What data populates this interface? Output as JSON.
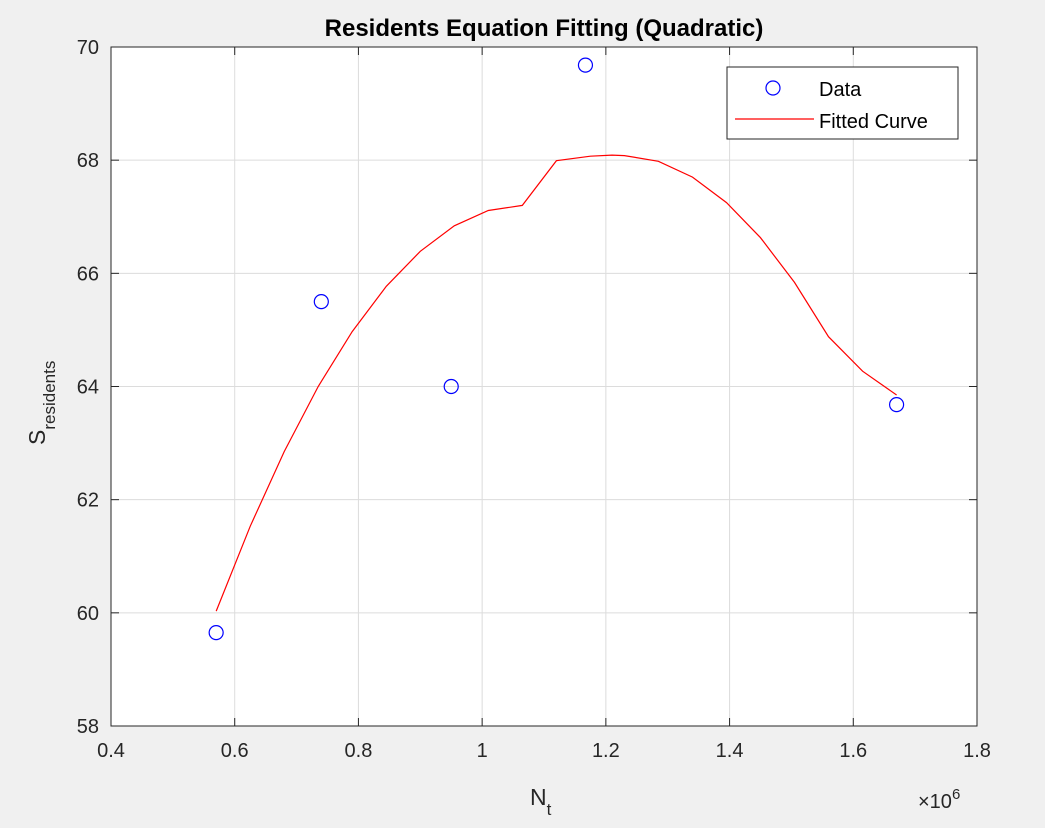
{
  "chart_data": {
    "type": "scatter",
    "title": "Residents Equation Fitting (Quadratic)",
    "xlabel": {
      "base": "N",
      "sub": "t"
    },
    "ylabel": {
      "base": "S",
      "sub": "residents"
    },
    "x_exponent_label": {
      "prefix": "×10",
      "exp": "6"
    },
    "xlim": [
      0.4,
      1.8
    ],
    "ylim": [
      58,
      70
    ],
    "x_ticks": [
      0.4,
      0.6,
      0.8,
      1.0,
      1.2,
      1.4,
      1.6,
      1.8
    ],
    "x_tick_labels": [
      "0.4",
      "0.6",
      "0.8",
      "1",
      "1.2",
      "1.4",
      "1.6",
      "1.8"
    ],
    "y_ticks": [
      58,
      60,
      62,
      64,
      66,
      68,
      70
    ],
    "y_tick_labels": [
      "58",
      "60",
      "62",
      "64",
      "66",
      "68",
      "70"
    ],
    "grid": true,
    "legend_position": "top-right",
    "series": [
      {
        "name": "Data",
        "kind": "markers",
        "marker": "circle",
        "color": "#0000ff",
        "x": [
          0.57,
          0.74,
          0.95,
          1.167,
          1.67
        ],
        "y": [
          59.65,
          65.5,
          64.0,
          69.68,
          63.68
        ]
      },
      {
        "name": "Fitted Curve",
        "kind": "line",
        "color": "#ff0000",
        "x": [
          0.57,
          0.625,
          0.68,
          0.735,
          0.79,
          0.845,
          0.9,
          0.955,
          1.01,
          1.065,
          1.12,
          1.175,
          1.21,
          1.23,
          1.285,
          1.34,
          1.395,
          1.45,
          1.505,
          1.56,
          1.615,
          1.67
        ],
        "y": [
          60.03,
          61.53,
          62.85,
          64.0,
          64.97,
          65.77,
          66.39,
          66.84,
          67.11,
          67.2,
          67.99,
          68.07,
          68.09,
          68.08,
          67.98,
          67.7,
          67.25,
          66.63,
          65.84,
          64.88,
          64.27,
          63.85
        ]
      }
    ]
  }
}
